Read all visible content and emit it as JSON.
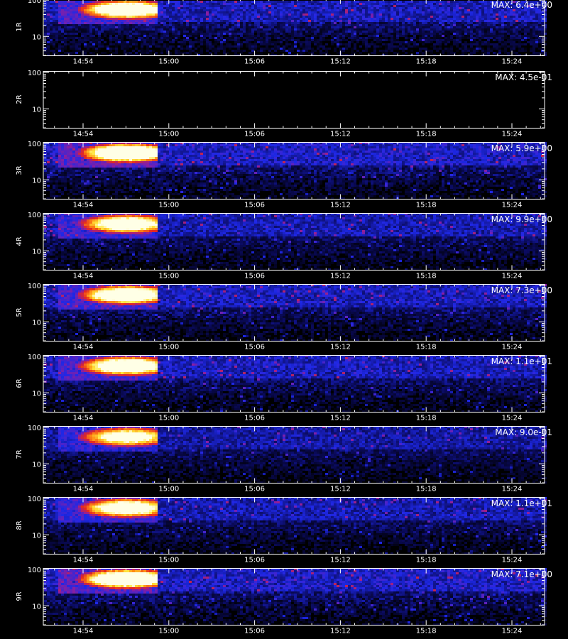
{
  "chart_data": {
    "type": "heatmap",
    "x_ticks": [
      "14:54",
      "15:00",
      "15:06",
      "15:12",
      "15:18",
      "15:24"
    ],
    "x_range_minutes": [
      14.0,
      15.53
    ],
    "y_scale": "log",
    "y_ticks": [
      10,
      100
    ],
    "y_range": [
      3,
      110
    ],
    "colormap": "blue-red-yellow-white",
    "panels": [
      {
        "label": "1R",
        "max_label": "MAX: 6.4e+00",
        "max": 6.4,
        "intensity": 0.95,
        "flare": {
          "t_start": "14:53",
          "t_peak": "14:57",
          "t_end": "14:59"
        }
      },
      {
        "label": "2R",
        "max_label": "MAX: 4.5e-01",
        "max": 0.45,
        "intensity": 0.0,
        "flare": null
      },
      {
        "label": "3R",
        "max_label": "MAX: 5.9e+00",
        "max": 5.9,
        "intensity": 1.0,
        "flare": {
          "t_start": "14:53",
          "t_peak": "14:57",
          "t_end": "14:59"
        }
      },
      {
        "label": "4R",
        "max_label": "MAX: 9.9e+00",
        "max": 9.9,
        "intensity": 0.9,
        "flare": {
          "t_start": "14:53",
          "t_peak": "14:57",
          "t_end": "14:59"
        }
      },
      {
        "label": "5R",
        "max_label": "MAX: 7.3e+00",
        "max": 7.3,
        "intensity": 0.95,
        "flare": {
          "t_start": "14:53",
          "t_peak": "14:57",
          "t_end": "14:59"
        }
      },
      {
        "label": "6R",
        "max_label": "MAX: 1.1e+01",
        "max": 11,
        "intensity": 0.95,
        "flare": {
          "t_start": "14:53",
          "t_peak": "14:57",
          "t_end": "14:59"
        }
      },
      {
        "label": "7R",
        "max_label": "MAX: 9.0e-01",
        "max": 0.9,
        "intensity": 0.85,
        "flare": {
          "t_start": "14:53",
          "t_peak": "14:57",
          "t_end": "14:59"
        }
      },
      {
        "label": "8R",
        "max_label": "MAX: 1.1e+01",
        "max": 11,
        "intensity": 0.9,
        "flare": {
          "t_start": "14:53",
          "t_peak": "14:57",
          "t_end": "14:59"
        }
      },
      {
        "label": "9R",
        "max_label": "MAX: 7.1e+00",
        "max": 7.1,
        "intensity": 1.0,
        "flare": {
          "t_start": "14:53",
          "t_peak": "14:57",
          "t_end": "14:59"
        }
      }
    ]
  },
  "colors": {
    "background": "#000000",
    "axes": "#ffffff",
    "text": "#ffffff"
  }
}
